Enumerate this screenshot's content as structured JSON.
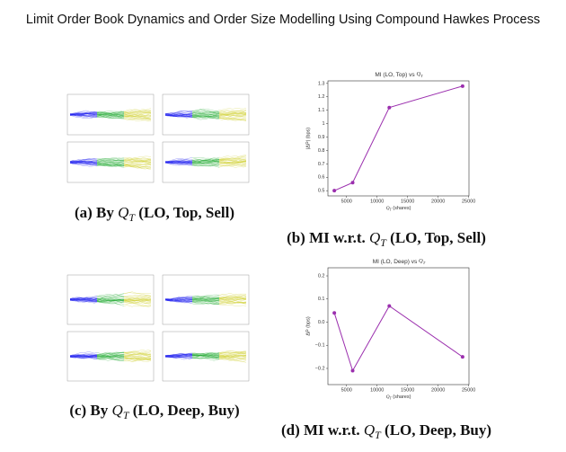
{
  "title": "Limit Order Book Dynamics and Order Size Modelling Using Compound Hawkes Process",
  "captions": [
    {
      "label": "(a) By ",
      "math": "Q",
      "sub": "T",
      "rest": " (LO, Top, Sell)"
    },
    {
      "label": "(b) MI w.r.t. ",
      "math": "Q",
      "sub": "T",
      "rest": " (LO, Top, Sell)"
    },
    {
      "label": "(c) By ",
      "math": "Q",
      "sub": "T",
      "rest": " (LO, Deep, Buy)"
    },
    {
      "label": "(d) MI w.r.t. ",
      "math": "Q",
      "sub": "T",
      "rest": " (LO, Deep, Buy)"
    }
  ],
  "chart_data": [
    {
      "type": "line",
      "title": {
        "text": "MI (LO, Top) vs ",
        "math": "Q",
        "sub": "T"
      },
      "xlabel": {
        "math": "Q",
        "sub": "T",
        "rest": " (shares)"
      },
      "ylabel": "|ΔP| (bps)",
      "x": [
        3000,
        6000,
        12000,
        24000
      ],
      "series": [
        {
          "color": "#9b2fae",
          "values": [
            0.5,
            0.56,
            1.12,
            1.28
          ]
        }
      ],
      "xlim": [
        1950,
        25050
      ],
      "xticks": [
        5000,
        10000,
        15000,
        20000,
        25000
      ],
      "ylim": [
        0.461,
        1.319
      ],
      "yticks": [
        0.5,
        0.6,
        0.7,
        0.8,
        0.9,
        1.0,
        1.1,
        1.2,
        1.3
      ]
    },
    {
      "type": "line",
      "title": {
        "text": "MI (LO, Deep) vs ",
        "math": "Q",
        "sub": "T"
      },
      "xlabel": {
        "math": "Q",
        "sub": "T",
        "rest": " (shares)"
      },
      "ylabel": "ΔP (bps)",
      "x": [
        3000,
        6000,
        12000,
        24000
      ],
      "series": [
        {
          "color": "#9b2fae",
          "values": [
            0.04,
            -0.21,
            0.07,
            -0.15
          ]
        }
      ],
      "xlim": [
        1950,
        25050
      ],
      "xticks": [
        5000,
        10000,
        15000,
        20000,
        25000
      ],
      "ylim": [
        -0.27,
        0.235
      ],
      "yticks": [
        {
          "value": -0.2,
          "label": "−0.2"
        },
        {
          "value": -0.1,
          "label": "−0.1"
        },
        {
          "value": 0,
          "label": "0.0"
        },
        0.1,
        0.2
      ]
    }
  ]
}
